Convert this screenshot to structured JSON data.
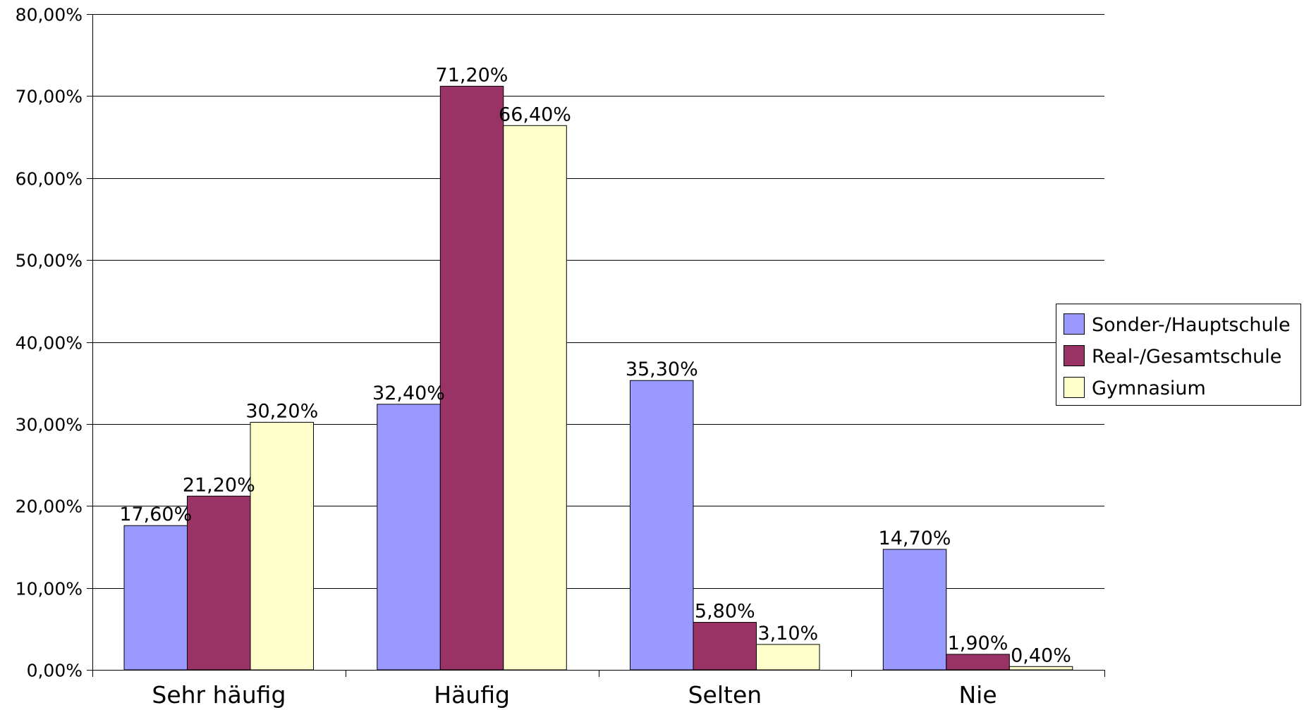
{
  "chart_data": {
    "type": "bar",
    "categories": [
      "Sehr häufig",
      "Häufig",
      "Selten",
      "Nie"
    ],
    "series": [
      {
        "name": "Sonder-/Hauptschule",
        "color": "#9999ff",
        "values": [
          17.6,
          32.4,
          35.3,
          14.7
        ],
        "labels": [
          "17,60%",
          "32,40%",
          "35,30%",
          "14,70%"
        ]
      },
      {
        "name": "Real-/Gesamtschule",
        "color": "#993366",
        "values": [
          21.2,
          71.2,
          5.8,
          1.9
        ],
        "labels": [
          "21,20%",
          "71,20%",
          "5,80%",
          "1,90%"
        ]
      },
      {
        "name": "Gymnasium",
        "color": "#ffffcc",
        "values": [
          30.2,
          66.4,
          3.1,
          0.4
        ],
        "labels": [
          "30,20%",
          "66,40%",
          "3,10%",
          "0,40%"
        ]
      }
    ],
    "ylim": [
      0,
      80
    ],
    "yticks": [
      0,
      10,
      20,
      30,
      40,
      50,
      60,
      70,
      80
    ],
    "ytick_labels": [
      "0,00%",
      "10,00%",
      "20,00%",
      "30,00%",
      "40,00%",
      "50,00%",
      "60,00%",
      "70,00%",
      "80,00%"
    ],
    "title": "",
    "xlabel": "",
    "ylabel": "",
    "grid": true,
    "legend_position": "right"
  }
}
